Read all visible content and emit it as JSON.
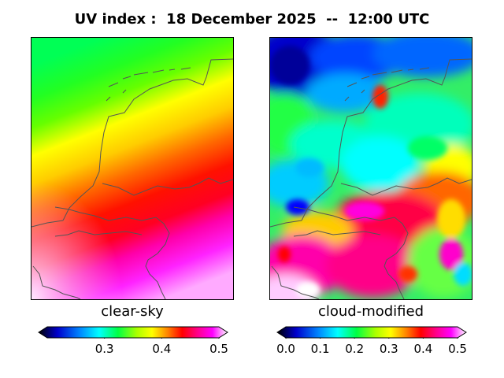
{
  "title": {
    "prefix": "UV index :",
    "date": "18 December 2025",
    "separator": "--",
    "time": "12:00 UTC"
  },
  "panels": {
    "left": {
      "label": "clear-sky"
    },
    "right": {
      "label": "cloud-modified"
    }
  },
  "colorbars": {
    "left": {
      "range": [
        0.2,
        0.5
      ],
      "ticks": [
        "0.3",
        "0.4",
        "0.5"
      ],
      "tick_values": [
        0.3,
        0.4,
        0.5
      ]
    },
    "right": {
      "range": [
        0.0,
        0.5
      ],
      "ticks": [
        "0.0",
        "0.1",
        "0.2",
        "0.3",
        "0.4",
        "0.5"
      ],
      "tick_values": [
        0.0,
        0.1,
        0.2,
        0.3,
        0.4,
        0.5
      ]
    }
  },
  "colors": {
    "colormap": [
      "#000000",
      "#0000cc",
      "#0088ff",
      "#00ffff",
      "#00ff44",
      "#88ff00",
      "#ffff00",
      "#ff8800",
      "#ff0000",
      "#ff0077",
      "#ff00ff",
      "#ffffff"
    ],
    "coastline": "#555555"
  }
}
